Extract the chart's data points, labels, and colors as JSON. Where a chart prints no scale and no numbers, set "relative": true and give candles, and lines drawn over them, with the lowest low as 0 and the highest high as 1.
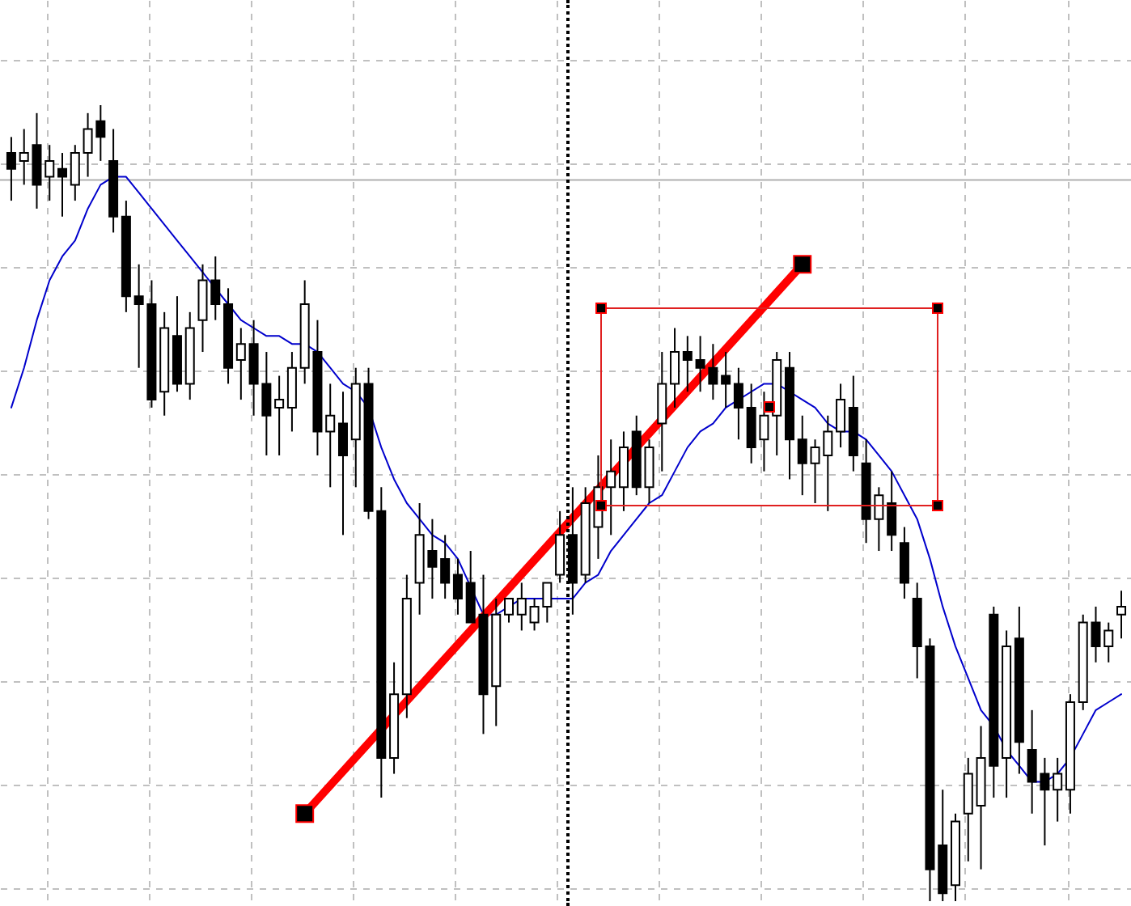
{
  "chart_data": {
    "type": "candlestick",
    "relative": true,
    "grid": true,
    "tick_labels": false,
    "categories": [
      null,
      null,
      null,
      null,
      null,
      null,
      null,
      null,
      null,
      null,
      null,
      null,
      null,
      null,
      null,
      null,
      null,
      null,
      null,
      null,
      null,
      null,
      null,
      null,
      null,
      null,
      null,
      null,
      null,
      null,
      null,
      null,
      null,
      null,
      null,
      null,
      null,
      null,
      null,
      null,
      null,
      null,
      null,
      null,
      null,
      null,
      null,
      null,
      null,
      null,
      null,
      null,
      null,
      null,
      null,
      null,
      null,
      null,
      null,
      null,
      null,
      null,
      null,
      null,
      null,
      null,
      null,
      null,
      null,
      null,
      null,
      null,
      null,
      null,
      null,
      null,
      null,
      null,
      null,
      null,
      null,
      null,
      null,
      null,
      null,
      null,
      null,
      null
    ],
    "ohlc": [
      [
        0.94,
        0.96,
        0.88,
        0.92
      ],
      [
        0.93,
        0.97,
        0.9,
        0.94
      ],
      [
        0.95,
        0.99,
        0.87,
        0.9
      ],
      [
        0.91,
        0.95,
        0.88,
        0.93
      ],
      [
        0.92,
        0.94,
        0.86,
        0.91
      ],
      [
        0.9,
        0.95,
        0.88,
        0.94
      ],
      [
        0.94,
        0.99,
        0.91,
        0.97
      ],
      [
        0.98,
        1.0,
        0.93,
        0.96
      ],
      [
        0.93,
        0.97,
        0.84,
        0.86
      ],
      [
        0.86,
        0.88,
        0.74,
        0.76
      ],
      [
        0.76,
        0.8,
        0.67,
        0.75
      ],
      [
        0.75,
        0.78,
        0.62,
        0.63
      ],
      [
        0.64,
        0.74,
        0.61,
        0.72
      ],
      [
        0.71,
        0.76,
        0.64,
        0.65
      ],
      [
        0.65,
        0.74,
        0.63,
        0.72
      ],
      [
        0.73,
        0.8,
        0.69,
        0.78
      ],
      [
        0.78,
        0.81,
        0.73,
        0.75
      ],
      [
        0.75,
        0.77,
        0.65,
        0.67
      ],
      [
        0.68,
        0.72,
        0.63,
        0.7
      ],
      [
        0.7,
        0.73,
        0.61,
        0.65
      ],
      [
        0.65,
        0.69,
        0.56,
        0.61
      ],
      [
        0.62,
        0.66,
        0.56,
        0.63
      ],
      [
        0.62,
        0.69,
        0.59,
        0.67
      ],
      [
        0.67,
        0.78,
        0.65,
        0.75
      ],
      [
        0.69,
        0.73,
        0.56,
        0.59
      ],
      [
        0.59,
        0.65,
        0.52,
        0.61
      ],
      [
        0.6,
        0.64,
        0.46,
        0.56
      ],
      [
        0.58,
        0.67,
        0.52,
        0.65
      ],
      [
        0.65,
        0.67,
        0.48,
        0.49
      ],
      [
        0.49,
        0.52,
        0.13,
        0.18
      ],
      [
        0.18,
        0.3,
        0.16,
        0.26
      ],
      [
        0.26,
        0.41,
        0.23,
        0.38
      ],
      [
        0.4,
        0.5,
        0.36,
        0.46
      ],
      [
        0.44,
        0.48,
        0.38,
        0.42
      ],
      [
        0.43,
        0.46,
        0.38,
        0.4
      ],
      [
        0.41,
        0.43,
        0.36,
        0.38
      ],
      [
        0.4,
        0.44,
        0.35,
        0.35
      ],
      [
        0.36,
        0.41,
        0.21,
        0.26
      ],
      [
        0.27,
        0.38,
        0.22,
        0.36
      ],
      [
        0.36,
        0.38,
        0.35,
        0.38
      ],
      [
        0.36,
        0.4,
        0.34,
        0.38
      ],
      [
        0.35,
        0.38,
        0.34,
        0.37
      ],
      [
        0.37,
        0.4,
        0.35,
        0.4
      ],
      [
        0.41,
        0.49,
        0.4,
        0.46
      ],
      [
        0.46,
        0.52,
        0.36,
        0.4
      ],
      [
        0.41,
        0.52,
        0.4,
        0.5
      ],
      [
        0.47,
        0.56,
        0.43,
        0.52
      ],
      [
        0.52,
        0.58,
        0.46,
        0.54
      ],
      [
        0.52,
        0.59,
        0.49,
        0.57
      ],
      [
        0.59,
        0.61,
        0.51,
        0.52
      ],
      [
        0.52,
        0.58,
        0.5,
        0.57
      ],
      [
        0.6,
        0.69,
        0.54,
        0.65
      ],
      [
        0.65,
        0.72,
        0.62,
        0.69
      ],
      [
        0.69,
        0.71,
        0.64,
        0.68
      ],
      [
        0.68,
        0.71,
        0.64,
        0.67
      ],
      [
        0.67,
        0.7,
        0.63,
        0.65
      ],
      [
        0.66,
        0.69,
        0.62,
        0.65
      ],
      [
        0.65,
        0.67,
        0.58,
        0.62
      ],
      [
        0.62,
        0.65,
        0.55,
        0.57
      ],
      [
        0.58,
        0.64,
        0.54,
        0.61
      ],
      [
        0.61,
        0.69,
        0.56,
        0.68
      ],
      [
        0.67,
        0.69,
        0.53,
        0.58
      ],
      [
        0.58,
        0.61,
        0.51,
        0.55
      ],
      [
        0.55,
        0.58,
        0.5,
        0.57
      ],
      [
        0.56,
        0.61,
        0.49,
        0.59
      ],
      [
        0.59,
        0.65,
        0.57,
        0.63
      ],
      [
        0.62,
        0.66,
        0.54,
        0.56
      ],
      [
        0.55,
        0.58,
        0.45,
        0.48
      ],
      [
        0.48,
        0.52,
        0.44,
        0.51
      ],
      [
        0.5,
        0.54,
        0.44,
        0.46
      ],
      [
        0.45,
        0.47,
        0.38,
        0.4
      ],
      [
        0.38,
        0.4,
        0.28,
        0.32
      ],
      [
        0.32,
        0.33,
        0.0,
        0.04
      ],
      [
        0.07,
        0.14,
        0.0,
        0.01
      ],
      [
        0.02,
        0.11,
        0.0,
        0.1
      ],
      [
        0.11,
        0.18,
        0.05,
        0.16
      ],
      [
        0.12,
        0.22,
        0.04,
        0.18
      ],
      [
        0.36,
        0.37,
        0.13,
        0.17
      ],
      [
        0.18,
        0.34,
        0.13,
        0.32
      ],
      [
        0.33,
        0.37,
        0.16,
        0.2
      ],
      [
        0.19,
        0.24,
        0.11,
        0.15
      ],
      [
        0.16,
        0.18,
        0.07,
        0.14
      ],
      [
        0.14,
        0.18,
        0.1,
        0.16
      ],
      [
        0.14,
        0.26,
        0.11,
        0.25
      ],
      [
        0.25,
        0.36,
        0.24,
        0.35
      ],
      [
        0.35,
        0.37,
        0.3,
        0.32
      ],
      [
        0.32,
        0.35,
        0.3,
        0.34
      ],
      [
        0.36,
        0.39,
        0.33,
        0.37
      ]
    ],
    "series": [
      {
        "type": "line",
        "color": "#0000cc",
        "values": [
          0.62,
          0.67,
          0.73,
          0.78,
          0.81,
          0.83,
          0.87,
          0.9,
          0.91,
          0.91,
          0.89,
          0.87,
          0.85,
          0.83,
          0.81,
          0.79,
          0.77,
          0.75,
          0.73,
          0.72,
          0.71,
          0.71,
          0.7,
          0.7,
          0.69,
          0.67,
          0.65,
          0.64,
          0.62,
          0.57,
          0.53,
          0.5,
          0.48,
          0.46,
          0.45,
          0.43,
          null,
          0.36,
          0.36,
          0.37,
          0.38,
          0.38,
          0.38,
          0.38,
          0.38,
          0.4,
          0.41,
          0.44,
          0.46,
          0.48,
          0.5,
          0.51,
          0.54,
          0.57,
          0.59,
          0.6,
          0.62,
          0.63,
          0.64,
          0.65,
          0.65,
          0.64,
          0.63,
          0.62,
          0.6,
          0.59,
          0.59,
          0.58,
          0.56,
          0.54,
          0.51,
          0.48,
          0.43,
          0.37,
          0.32,
          0.28,
          0.24,
          0.22,
          0.19,
          0.17,
          0.15,
          0.15,
          0.16,
          0.18,
          0.21,
          0.24,
          0.25,
          0.26
        ]
      },
      {
        "type": "line",
        "color": "#ff0000",
        "marker": "square",
        "values": [
          null,
          null,
          null,
          null,
          null,
          null,
          null,
          null,
          null,
          null,
          null,
          null,
          null,
          null,
          null,
          null,
          null,
          null,
          null,
          null,
          null,
          null,
          null,
          0.11,
          null,
          null,
          null,
          null,
          null,
          null,
          null,
          null,
          null,
          null,
          null,
          null,
          null,
          null,
          null,
          null,
          null,
          null,
          null,
          null,
          null,
          null,
          null,
          null,
          null,
          null,
          null,
          null,
          null,
          null,
          null,
          null,
          null,
          null,
          null,
          null,
          null,
          null,
          0.8,
          null,
          null,
          null,
          null,
          null,
          null,
          null,
          null,
          null,
          null,
          null,
          null,
          null,
          null,
          null,
          null,
          null,
          null,
          null,
          null,
          null,
          null,
          null,
          null,
          null
        ]
      }
    ],
    "ref_lines": [
      {
        "axis": "y",
        "value": 0.906,
        "color": "#b0b0b0",
        "line_style": "solid"
      }
    ]
  }
}
